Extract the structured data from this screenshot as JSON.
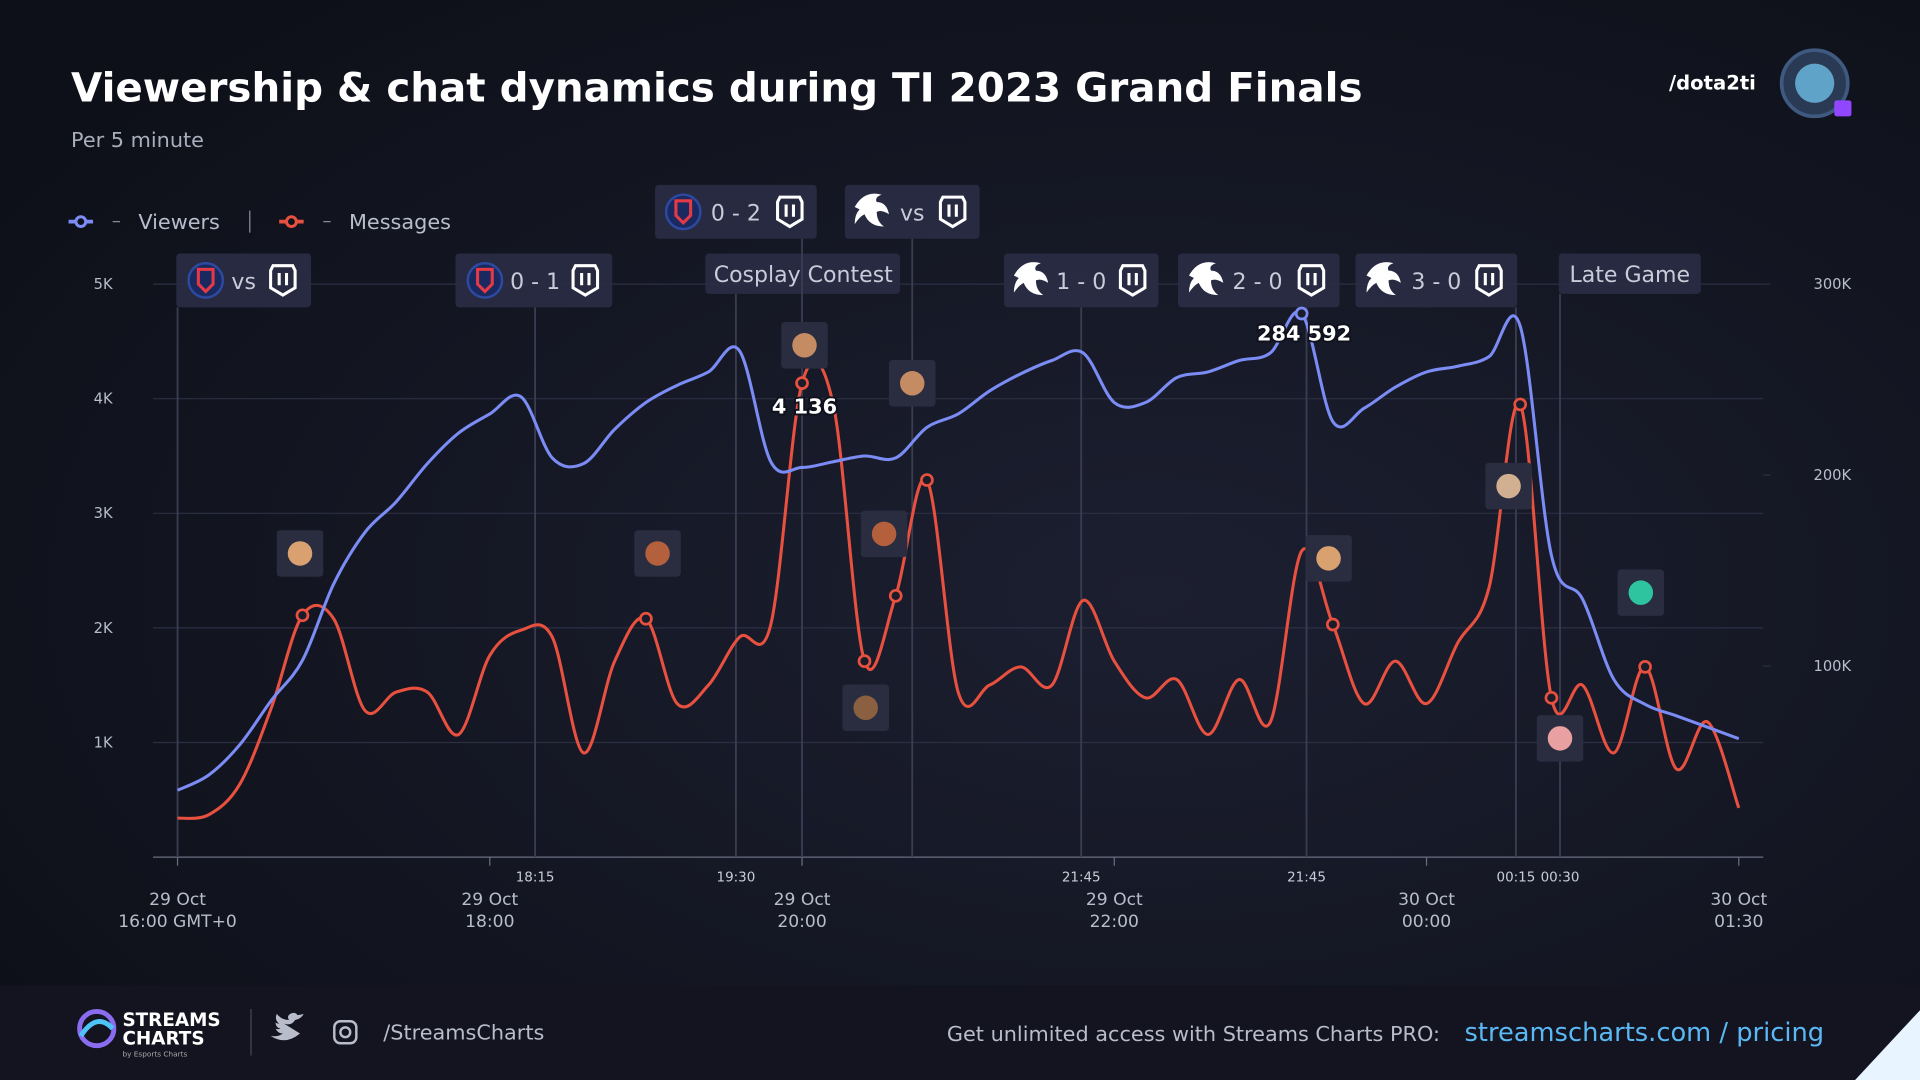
{
  "header": {
    "channel": "/dota2ti"
  },
  "chart_data": {
    "type": "line",
    "title": "Viewership & chat dynamics during TI 2023 Grand Finals",
    "subtitle": "Per 5 minute",
    "categories": [
      "29 Oct\n16:00 GMT+0",
      null,
      null,
      null,
      null,
      null,
      null,
      null,
      null,
      null,
      "29 Oct\n18:00",
      null,
      null,
      null,
      null,
      null,
      null,
      null,
      null,
      null,
      "29 Oct\n20:00",
      null,
      null,
      null,
      null,
      null,
      null,
      null,
      null,
      null,
      "29 Oct\n22:00",
      null,
      null,
      null,
      null,
      null,
      null,
      null,
      null,
      null,
      "30 Oct\n00:00",
      null,
      null,
      null,
      null,
      null,
      null,
      null,
      null,
      null,
      "30 Oct\n01:30"
    ],
    "series": [
      {
        "name": "Viewers",
        "color": "#7b8cf5",
        "axis": "y2",
        "values": [
          35000,
          43000,
          59000,
          82000,
          103000,
          143000,
          170000,
          186000,
          206000,
          222000,
          232000,
          241000,
          209000,
          206000,
          224000,
          238000,
          247000,
          254000,
          265000,
          207000,
          204000,
          207000,
          210000,
          209000,
          225000,
          232000,
          244000,
          253000,
          260000,
          264000,
          238000,
          238000,
          251000,
          254000,
          260000,
          264000,
          284592,
          228000,
          235000,
          246000,
          254000,
          257000,
          262000,
          278000,
          158000,
          135000,
          93000,
          80000,
          74000,
          68000,
          62000
        ],
        "value_labels": [
          null,
          null,
          null,
          null,
          null,
          null,
          null,
          null,
          null,
          null,
          null,
          null,
          null,
          null,
          null,
          null,
          null,
          null,
          null,
          null,
          null,
          null,
          null,
          null,
          null,
          null,
          null,
          null,
          null,
          null,
          null,
          null,
          null,
          null,
          null,
          null,
          "284 592",
          null,
          null,
          null,
          null,
          null,
          null,
          null,
          null,
          null,
          null,
          null,
          null,
          null,
          null
        ]
      },
      {
        "name": "Messages",
        "color": "#e8503f",
        "values": [
          340,
          370,
          640,
          1300,
          2110,
          2080,
          1280,
          1440,
          1440,
          1070,
          1760,
          1980,
          1920,
          910,
          1710,
          2080,
          1340,
          1500,
          1920,
          2030,
          4136,
          3950,
          1710,
          2280,
          3290,
          1440,
          1500,
          1660,
          1500,
          2240,
          1710,
          1390,
          1550,
          1070,
          1550,
          1180,
          2670,
          2030,
          1340,
          1710,
          1340,
          1870,
          2350,
          3950,
          1390,
          1500,
          910,
          1660,
          770,
          1180,
          430
        ],
        "value_labels": [
          null,
          null,
          null,
          null,
          null,
          null,
          null,
          null,
          null,
          null,
          null,
          null,
          null,
          null,
          null,
          null,
          null,
          null,
          null,
          null,
          "4 136",
          null,
          null,
          null,
          null,
          null,
          null,
          null,
          null,
          null,
          null,
          null,
          null,
          null,
          null,
          null,
          null,
          null,
          null,
          null,
          null,
          null,
          null,
          null,
          null,
          null,
          null,
          null,
          null,
          null,
          null
        ]
      }
    ],
    "ylim": [
      0,
      5000
    ],
    "yticks": [
      {
        "value": 1000,
        "label": "1K"
      },
      {
        "value": 2000,
        "label": "2K"
      },
      {
        "value": 3000,
        "label": "3K"
      },
      {
        "value": 4000,
        "label": "4K"
      },
      {
        "value": 5000,
        "label": "5K"
      }
    ],
    "y2lim": [
      0,
      300000
    ],
    "y2ticks": [
      {
        "value": 100000,
        "label": "100K"
      },
      {
        "value": 200000,
        "label": "200K"
      },
      {
        "value": 300000,
        "label": "300K"
      }
    ],
    "grid": true,
    "legend": "top-left",
    "events": [
      {
        "label": "vs",
        "time": null
      },
      {
        "label": "0 - 1",
        "time": "18:15"
      },
      {
        "label": "Cosplay Contest",
        "time": "19:30"
      },
      {
        "label": "0 - 2",
        "time": null
      },
      {
        "label": "vs",
        "time": null
      },
      {
        "label": "1 - 0",
        "time": "21:45"
      },
      {
        "label": "2 - 0",
        "time": "21:45"
      },
      {
        "label": "3 - 0",
        "time": "00:15"
      },
      {
        "label": "Late Game",
        "time": "00:30"
      }
    ]
  },
  "footer": {
    "brand": "STREAMS\nCHARTS",
    "brand_sub": "by Esports Charts",
    "social": "/StreamsCharts",
    "promo": "Get unlimited access with Streams Charts PRO:",
    "link": "streamscharts.com / pricing"
  }
}
